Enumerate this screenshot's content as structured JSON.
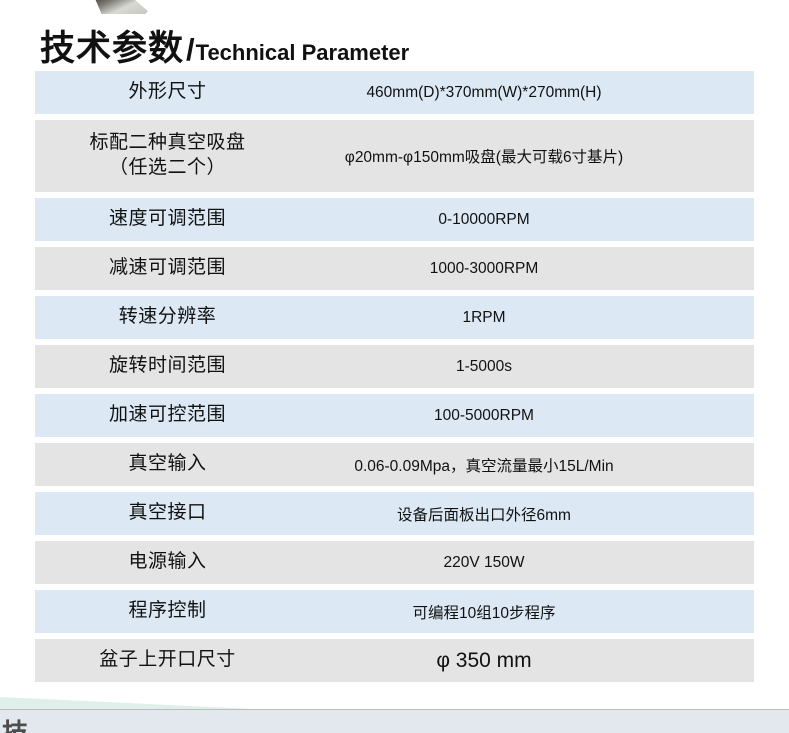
{
  "header": {
    "title_cn": "技术参数",
    "title_slash": "/",
    "title_en": "Technical Parameter"
  },
  "table": {
    "rows": [
      {
        "label": "外形尺寸",
        "value": "460mm(D)*370mm(W)*270mm(H)",
        "tone": "blue",
        "tall": false,
        "large_value": false
      },
      {
        "label": "标配二种真空吸盘\n（任选二个）",
        "value": "φ20mm-φ150mm吸盘(最大可载6寸基片)",
        "tone": "gray",
        "tall": true,
        "large_value": false
      },
      {
        "label": "速度可调范围",
        "value": "0-10000RPM",
        "tone": "blue",
        "tall": false,
        "large_value": false
      },
      {
        "label": "减速可调范围",
        "value": "1000-3000RPM",
        "tone": "gray",
        "tall": false,
        "large_value": false
      },
      {
        "label": "转速分辨率",
        "value": "1RPM",
        "tone": "blue",
        "tall": false,
        "large_value": false
      },
      {
        "label": "旋转时间范围",
        "value": "1-5000s",
        "tone": "gray",
        "tall": false,
        "large_value": false
      },
      {
        "label": "加速可控范围",
        "value": "100-5000RPM",
        "tone": "blue",
        "tall": false,
        "large_value": false
      },
      {
        "label": "真空输入",
        "value": "0.06-0.09Mpa，真空流量最小15L/Min",
        "tone": "gray",
        "tall": false,
        "large_value": false
      },
      {
        "label": "真空接口",
        "value": "设备后面板出口外径6mm",
        "tone": "blue",
        "tall": false,
        "large_value": false
      },
      {
        "label": "电源输入",
        "value": "220V  150W",
        "tone": "gray",
        "tall": false,
        "large_value": false
      },
      {
        "label": "程序控制",
        "value": "可编程10组10步程序",
        "tone": "blue",
        "tall": false,
        "large_value": false
      },
      {
        "label": "盆子上开口尺寸",
        "value": "φ 350 mm",
        "tone": "gray",
        "tall": false,
        "large_value": true
      }
    ]
  },
  "footer": {
    "clipped_text": "技"
  },
  "colors": {
    "row_blue": "#dce9f5",
    "row_gray": "#e4e4e4",
    "bottom_band": "#e2e8ee",
    "teal_wedge": "#def0e9",
    "title_text": "#000000"
  },
  "icons": {
    "photo_corner": "photo-corner-decoration",
    "teal_wedge": "teal-wedge-decoration"
  }
}
